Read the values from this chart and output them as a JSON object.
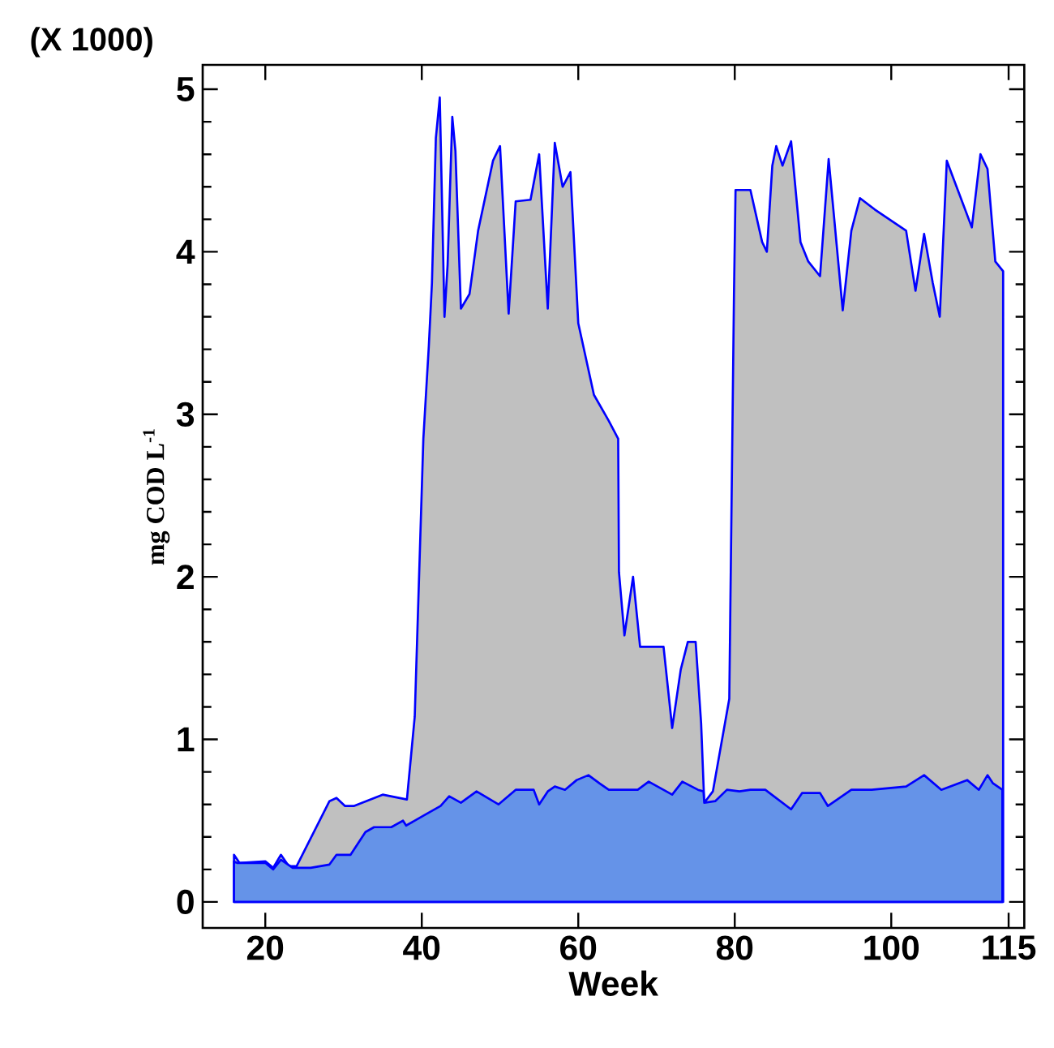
{
  "chart_data": {
    "type": "area",
    "xlabel": "Week",
    "ylabel": "mg COD L$^{-1}$",
    "annotations": [
      "(X 1000)"
    ],
    "xlim": [
      12,
      117
    ],
    "ylim": [
      -0.16,
      5.15
    ],
    "xticks": [
      20,
      40,
      60,
      80,
      100,
      115
    ],
    "yticks": [
      0,
      1,
      2,
      3,
      4,
      5
    ],
    "series": [
      {
        "color": "#c0c0c0",
        "x": [
          16,
          16.7,
          20,
          21,
          22,
          23,
          24,
          28.2,
          29.1,
          30.2,
          31.3,
          35,
          38.1,
          39.1,
          40.2,
          40.9,
          41.3,
          41.8,
          42.3,
          42.9,
          43.3,
          43.9,
          44.3,
          45,
          46.1,
          47.2,
          49.1,
          50,
          51.1,
          52,
          53.9,
          55,
          56.1,
          57,
          58,
          59,
          60,
          62,
          63.9,
          65.1,
          65.2,
          65.9,
          67,
          67.9,
          70.9,
          72,
          73.1,
          74,
          75,
          75.7,
          76.1,
          77.2,
          79,
          79.3,
          79.6,
          79.9,
          80.1,
          82,
          83.5,
          84.1,
          84.8,
          85.3,
          86.1,
          87.2,
          88.4,
          89.4,
          90.9,
          92,
          92.7,
          93.8,
          94.9,
          96,
          97.9,
          101.9,
          103.1,
          104.2,
          105.3,
          106.2,
          107.1,
          110.3,
          111.4,
          112.3,
          113.3,
          114.3
        ],
        "values": [
          0.29,
          0.24,
          0.25,
          0.21,
          0.29,
          0.22,
          0.22,
          0.62,
          0.64,
          0.59,
          0.59,
          0.66,
          0.63,
          1.14,
          2.85,
          3.42,
          3.81,
          4.7,
          4.95,
          3.6,
          3.92,
          4.83,
          4.62,
          3.65,
          3.74,
          4.13,
          4.56,
          4.65,
          3.62,
          4.31,
          4.32,
          4.6,
          3.65,
          4.67,
          4.4,
          4.49,
          3.56,
          3.12,
          2.96,
          2.85,
          2.03,
          1.64,
          2.0,
          1.57,
          1.57,
          1.07,
          1.43,
          1.6,
          1.6,
          1.1,
          0.61,
          0.68,
          null,
          1.25,
          2.49,
          3.74,
          4.38,
          4.38,
          4.06,
          4.0,
          4.53,
          4.65,
          4.53,
          4.68,
          4.06,
          3.94,
          3.85,
          4.57,
          4.21,
          3.64,
          4.13,
          4.33,
          4.26,
          4.13,
          3.76,
          4.11,
          3.81,
          3.6,
          4.56,
          4.15,
          4.6,
          4.51,
          3.94,
          3.88
        ]
      },
      {
        "color": "#6593e8",
        "x": [
          16,
          16.4,
          20,
          21,
          22,
          23.5,
          25.8,
          28.2,
          29.1,
          30.9,
          32.8,
          33.9,
          36.1,
          37.6,
          38,
          40.2,
          42.4,
          43.5,
          45,
          47,
          49.8,
          52,
          54.3,
          55,
          56.1,
          57,
          58.3,
          59.8,
          61.3,
          62.7,
          63.9,
          67.6,
          69,
          72,
          73.3,
          75.3,
          76,
          76.1,
          77.5,
          79,
          80.6,
          82,
          83.9,
          87.2,
          88.6,
          90.9,
          91.9,
          94.9,
          97.5,
          101.9,
          104.2,
          106.4,
          109.7,
          111.2,
          112.3,
          113,
          114.2
        ],
        "values": [
          0.25,
          0.24,
          0.24,
          0.2,
          0.26,
          0.21,
          0.21,
          0.23,
          0.29,
          0.29,
          0.43,
          0.46,
          0.46,
          0.5,
          0.47,
          0.53,
          0.59,
          0.65,
          0.61,
          0.68,
          0.6,
          0.69,
          0.69,
          0.6,
          0.68,
          0.71,
          0.69,
          0.75,
          0.78,
          0.73,
          0.69,
          0.69,
          0.74,
          0.66,
          0.74,
          0.69,
          0.68,
          0.61,
          0.62,
          0.69,
          0.68,
          0.69,
          0.69,
          0.57,
          0.67,
          0.67,
          0.59,
          0.69,
          0.69,
          0.71,
          0.78,
          0.69,
          0.75,
          0.69,
          0.78,
          0.73,
          0.69
        ]
      }
    ]
  }
}
